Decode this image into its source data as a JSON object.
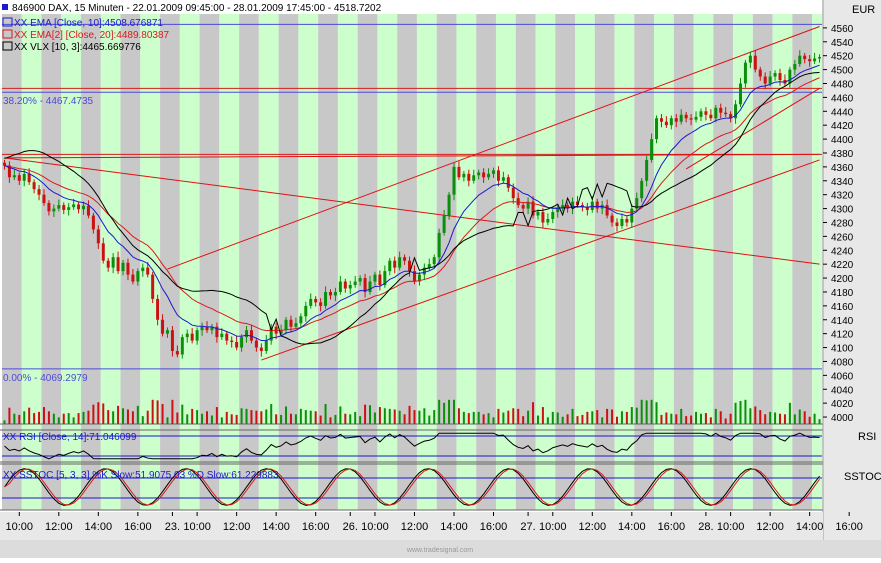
{
  "chart_data": {
    "type": "candlestick",
    "title": "846900 DAX, 15 Minuten - 22.01.2009 09:45:00 - 28.01.2009 17:45:00 - 4518.7202",
    "currency_label": "EUR",
    "legend": [
      {
        "text": "XX EMA [Close, 10]:4508.676871",
        "color": "#1a1acc"
      },
      {
        "text": "XX EMA[2] [Close, 20]:4489.80387",
        "color": "#d81b1b"
      },
      {
        "text": "XX VLX [10, 3]:4465.669776",
        "color": "#000000"
      }
    ],
    "fib_labels": [
      {
        "text": "38.20% - 4467.4735",
        "value": 4467.4735
      },
      {
        "text": "0.00% - 4069.2979",
        "value": 4069.2979
      }
    ],
    "hlines_blue": [
      4565,
      4467.4735,
      4069.2979
    ],
    "hlines_red": [
      4473,
      4378
    ],
    "ylim": [
      3990,
      4580
    ],
    "y_ticks": [
      4000,
      4020,
      4040,
      4060,
      4080,
      4100,
      4120,
      4140,
      4160,
      4180,
      4200,
      4220,
      4240,
      4260,
      4280,
      4300,
      4320,
      4340,
      4360,
      4380,
      4400,
      4420,
      4440,
      4460,
      4480,
      4500,
      4520,
      4540,
      4560
    ],
    "x_ticks": [
      {
        "label": "10:00",
        "idx": 3
      },
      {
        "label": "12:00",
        "idx": 11
      },
      {
        "label": "14:00",
        "idx": 19
      },
      {
        "label": "16:00",
        "idx": 27
      },
      {
        "label": "23.",
        "idx": 34
      },
      {
        "label": "10:00",
        "idx": 39
      },
      {
        "label": "12:00",
        "idx": 47
      },
      {
        "label": "14:00",
        "idx": 55
      },
      {
        "label": "16:00",
        "idx": 63
      },
      {
        "label": "26.",
        "idx": 70
      },
      {
        "label": "10:00",
        "idx": 75
      },
      {
        "label": "12:00",
        "idx": 83
      },
      {
        "label": "14:00",
        "idx": 91
      },
      {
        "label": "16:00",
        "idx": 99
      },
      {
        "label": "27.",
        "idx": 106
      },
      {
        "label": "10:00",
        "idx": 111
      },
      {
        "label": "12:00",
        "idx": 119
      },
      {
        "label": "14:00",
        "idx": 127
      },
      {
        "label": "16:00",
        "idx": 135
      },
      {
        "label": "28.",
        "idx": 142
      },
      {
        "label": "10:00",
        "idx": 147
      },
      {
        "label": "12:00",
        "idx": 155
      },
      {
        "label": "14:00",
        "idx": 163
      },
      {
        "label": "16:00",
        "idx": 171
      }
    ],
    "closes": [
      4362,
      4345,
      4348,
      4340,
      4350,
      4338,
      4328,
      4320,
      4308,
      4296,
      4300,
      4305,
      4298,
      4302,
      4306,
      4299,
      4304,
      4290,
      4270,
      4250,
      4225,
      4215,
      4230,
      4210,
      4222,
      4205,
      4195,
      4210,
      4215,
      4205,
      4170,
      4140,
      4120,
      4125,
      4095,
      4090,
      4115,
      4120,
      4110,
      4125,
      4130,
      4125,
      4130,
      4115,
      4120,
      4110,
      4108,
      4100,
      4115,
      4125,
      4110,
      4100,
      4095,
      4110,
      4130,
      4120,
      4125,
      4140,
      4130,
      4135,
      4145,
      4160,
      4170,
      4165,
      4160,
      4180,
      4175,
      4180,
      4195,
      4185,
      4190,
      4195,
      4200,
      4180,
      4195,
      4205,
      4190,
      4210,
      4225,
      4215,
      4230,
      4225,
      4210,
      4195,
      4205,
      4215,
      4220,
      4230,
      4265,
      4290,
      4320,
      4360,
      4345,
      4350,
      4340,
      4348,
      4352,
      4345,
      4350,
      4355,
      4340,
      4345,
      4330,
      4315,
      4305,
      4300,
      4310,
      4290,
      4295,
      4280,
      4285,
      4295,
      4300,
      4305,
      4300,
      4310,
      4305,
      4302,
      4298,
      4310,
      4300,
      4305,
      4290,
      4280,
      4275,
      4285,
      4280,
      4300,
      4315,
      4340,
      4370,
      4400,
      4430,
      4425,
      4420,
      4430,
      4425,
      4435,
      4430,
      4428,
      4432,
      4440,
      4435,
      4430,
      4445,
      4438,
      4436,
      4430,
      4450,
      4480,
      4510,
      4520,
      4500,
      4490,
      4480,
      4490,
      4495,
      4485,
      4480,
      4500,
      4508,
      4520,
      4515,
      4512,
      4516,
      4518
    ],
    "rsi_legend": "XX RSI [Close, 14]:71.046099",
    "rsi_label": "RSI",
    "sstoc_legend": "XX SSTOC [5, 3, 3] %K Slow:51.9075 03 %D Slow:61.229883",
    "sstoc_label": "SSTOC",
    "watermark": "www.tradesignal.com",
    "colors": {
      "up": "#0b8f0b",
      "down": "#cc1111",
      "ema10": "#1a1acc",
      "ema20": "#d81b1b",
      "vlx": "#000000",
      "axis_bg": "#e8e8e8",
      "green_band": "#ccffcc",
      "gray_band": "#c8c8c8"
    }
  }
}
